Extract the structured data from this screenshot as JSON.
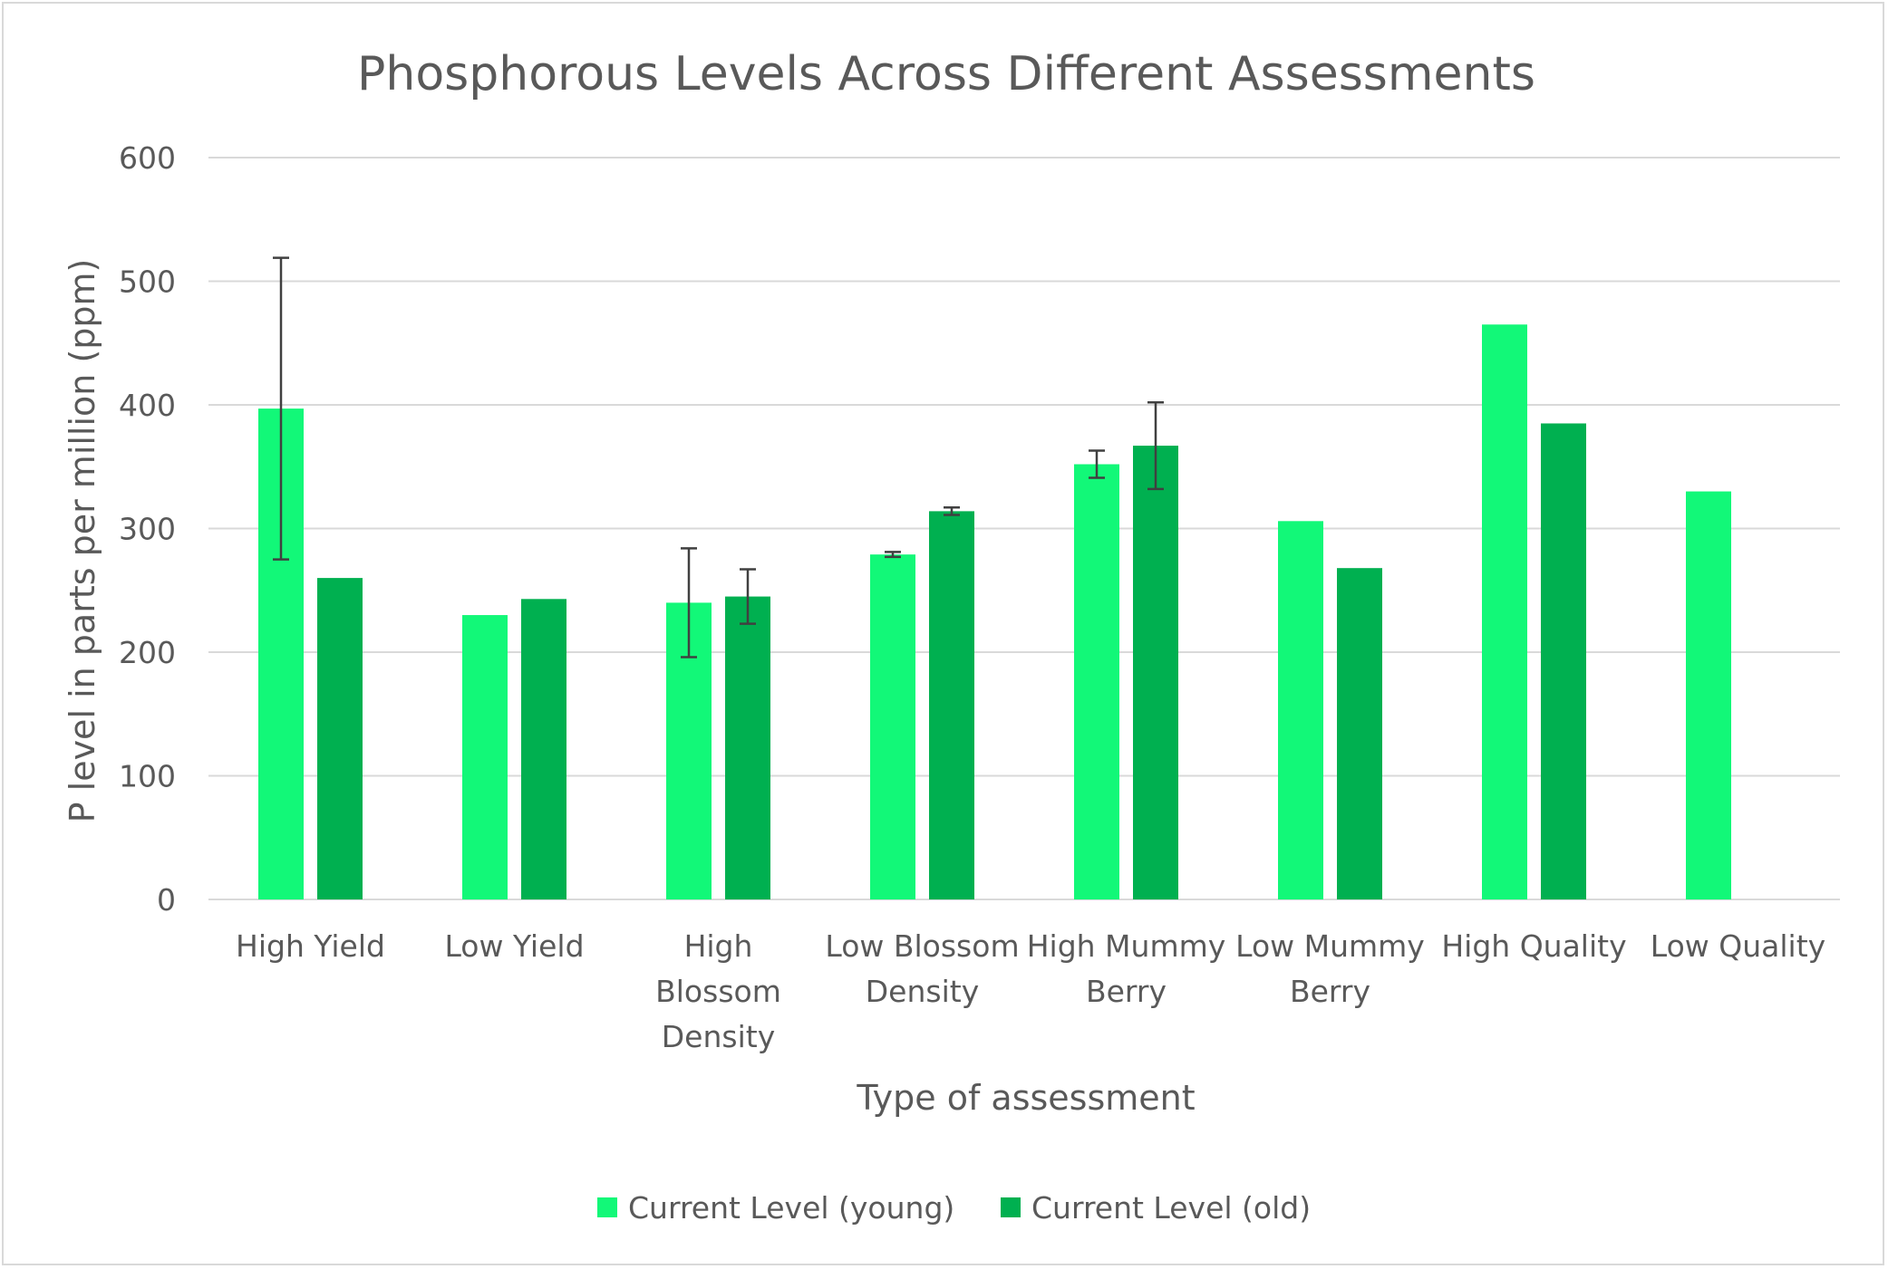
{
  "chart_data": {
    "type": "bar",
    "title": "Phosphorous Levels Across Different Assessments",
    "xlabel": "Type of assessment",
    "ylabel": "P level in parts per million (ppm)",
    "ylim": [
      0,
      600
    ],
    "yticks": [
      "0",
      "100",
      "200",
      "300",
      "400",
      "500",
      "600"
    ],
    "grid": true,
    "legend_position": "bottom",
    "categories": [
      [
        "High Yield"
      ],
      [
        "Low Yield"
      ],
      [
        "High",
        "Blossom",
        "Density"
      ],
      [
        "Low Blossom",
        "Density"
      ],
      [
        "High Mummy",
        "Berry"
      ],
      [
        "Low Mummy",
        "Berry"
      ],
      [
        "High Quality"
      ],
      [
        "Low Quality"
      ]
    ],
    "series": [
      {
        "name": "Current Level (young)",
        "color": "#12f878",
        "values": [
          397,
          230,
          240,
          279,
          352,
          306,
          465,
          330
        ],
        "error": [
          122,
          null,
          44,
          2,
          11,
          null,
          null,
          null
        ]
      },
      {
        "name": "Current Level (old)",
        "color": "#00b050",
        "values": [
          260,
          243,
          245,
          314,
          367,
          268,
          385,
          null
        ],
        "error": [
          null,
          null,
          22,
          3,
          35,
          null,
          null,
          null
        ]
      }
    ]
  }
}
